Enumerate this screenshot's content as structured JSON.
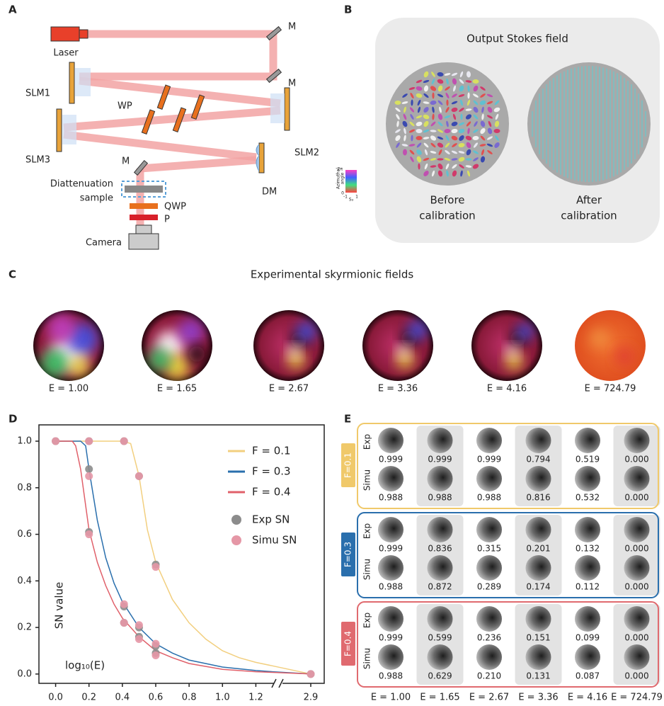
{
  "panel_labels": [
    "A",
    "B",
    "C",
    "D",
    "E"
  ],
  "setup": {
    "laser": "Laser",
    "mirrors": [
      "M",
      "M",
      "M"
    ],
    "slm1": "SLM1",
    "slm2": "SLM2",
    "slm3": "SLM3",
    "wp": "WP",
    "dm": "DM",
    "sample": [
      "Diattenuation",
      "sample"
    ],
    "qwp": "QWP",
    "polarizer": "P",
    "camera": "Camera"
  },
  "stokes": {
    "title": "Output Stokes field",
    "before": [
      "Before",
      "calibration"
    ],
    "after": [
      "After",
      "calibration"
    ],
    "colorbar": {
      "axis_label": [
        "Azimuthal",
        "angle"
      ],
      "top": "2π",
      "bottom": "0",
      "left": "-1",
      "right": "1",
      "x_label": "S₃"
    }
  },
  "skyrmion": {
    "title": "Experimental skyrmionic fields",
    "labels": [
      "E = 1.00",
      "E = 1.65",
      "E = 2.67",
      "E = 3.36",
      "E = 4.16",
      "E = 724.79"
    ]
  },
  "chart_data": {
    "type": "line",
    "x_label": "log₁₀(E)",
    "y_label": "SN value",
    "xlim": [
      -0.1,
      2.95
    ],
    "axis_break": [
      1.3,
      2.8
    ],
    "xticks": [
      {
        "value": 0,
        "label": "0.0"
      },
      0.2,
      0.4,
      0.6,
      0.8,
      {
        "value": 1,
        "label": "1.0"
      },
      1.2,
      2.9
    ],
    "ylim": [
      -0.04,
      1.07
    ],
    "yticks": [
      {
        "value": 0,
        "label": "0.0"
      },
      0.2,
      0.4,
      0.6,
      0.8,
      {
        "value": 1,
        "label": "1.0"
      }
    ],
    "legend": "upper right",
    "series": [
      {
        "name": "F = 0.1",
        "type": "line",
        "color": "#f2cf7f",
        "x": [
          0,
          0.1,
          0.2,
          0.3,
          0.4,
          0.45,
          0.5,
          0.55,
          0.6,
          0.7,
          0.8,
          0.9,
          1.0,
          1.1,
          1.2,
          1.3,
          2.9
        ],
        "values": [
          1,
          1,
          1,
          1,
          1,
          0.99,
          0.85,
          0.62,
          0.48,
          0.32,
          0.22,
          0.15,
          0.1,
          0.07,
          0.05,
          0.035,
          0
        ]
      },
      {
        "name": "F = 0.3",
        "type": "line",
        "color": "#2a6fad",
        "x": [
          0,
          0.1,
          0.15,
          0.18,
          0.2,
          0.25,
          0.3,
          0.35,
          0.4,
          0.5,
          0.6,
          0.7,
          0.8,
          1.0,
          1.2,
          1.3,
          2.9
        ],
        "values": [
          1,
          1,
          1,
          0.98,
          0.88,
          0.66,
          0.5,
          0.39,
          0.31,
          0.2,
          0.13,
          0.09,
          0.06,
          0.03,
          0.015,
          0.01,
          0
        ]
      },
      {
        "name": "F = 0.4",
        "type": "line",
        "color": "#e0606a",
        "x": [
          0,
          0.1,
          0.12,
          0.15,
          0.2,
          0.25,
          0.3,
          0.35,
          0.4,
          0.5,
          0.6,
          0.7,
          0.8,
          1.0,
          1.2,
          1.3,
          2.9
        ],
        "values": [
          1,
          1,
          0.98,
          0.88,
          0.62,
          0.48,
          0.38,
          0.3,
          0.24,
          0.16,
          0.1,
          0.07,
          0.045,
          0.02,
          0.01,
          0.007,
          0
        ]
      },
      {
        "name": "Exp SN",
        "type": "scatter",
        "color": "#8c8c8c",
        "x": [
          0,
          0.2,
          0.2,
          0.2,
          0.41,
          0.41,
          0.41,
          0.5,
          0.5,
          0.5,
          0.6,
          0.6,
          0.6,
          2.9
        ],
        "values": [
          1,
          1,
          0.88,
          0.61,
          1,
          0.29,
          0.22,
          0.85,
          0.2,
          0.16,
          0.47,
          0.12,
          0.09,
          0
        ]
      },
      {
        "name": "Simu SN",
        "type": "scatter",
        "color": "#e597a6",
        "x": [
          0,
          0.2,
          0.2,
          0.2,
          0.41,
          0.41,
          0.41,
          0.5,
          0.5,
          0.5,
          0.6,
          0.6,
          0.6,
          2.9
        ],
        "values": [
          1,
          1,
          0.85,
          0.6,
          1,
          0.3,
          0.22,
          0.85,
          0.21,
          0.15,
          0.46,
          0.13,
          0.08,
          0
        ]
      }
    ]
  },
  "sn_grid": {
    "blocks": [
      {
        "label": "F=0.1",
        "color": "#f0c96a",
        "rows": [
          {
            "label": "Exp",
            "values": [
              "0.999",
              "0.999",
              "0.999",
              "0.794",
              "0.519",
              "0.000"
            ]
          },
          {
            "label": "Simu",
            "values": [
              "0.988",
              "0.988",
              "0.988",
              "0.816",
              "0.532",
              "0.000"
            ]
          }
        ]
      },
      {
        "label": "F=0.3",
        "color": "#2a6fad",
        "rows": [
          {
            "label": "Exp",
            "values": [
              "0.999",
              "0.836",
              "0.315",
              "0.201",
              "0.132",
              "0.000"
            ]
          },
          {
            "label": "Simu",
            "values": [
              "0.988",
              "0.872",
              "0.289",
              "0.174",
              "0.112",
              "0.000"
            ]
          }
        ]
      },
      {
        "label": "F=0.4",
        "color": "#e06a6f",
        "rows": [
          {
            "label": "Exp",
            "values": [
              "0.999",
              "0.599",
              "0.236",
              "0.151",
              "0.099",
              "0.000"
            ]
          },
          {
            "label": "Simu",
            "values": [
              "0.988",
              "0.629",
              "0.210",
              "0.131",
              "0.087",
              "0.000"
            ]
          }
        ]
      }
    ],
    "columns": [
      "E = 1.00",
      "E = 1.65",
      "E = 2.67",
      "E = 3.36",
      "E = 4.16",
      "E = 724.79"
    ]
  }
}
